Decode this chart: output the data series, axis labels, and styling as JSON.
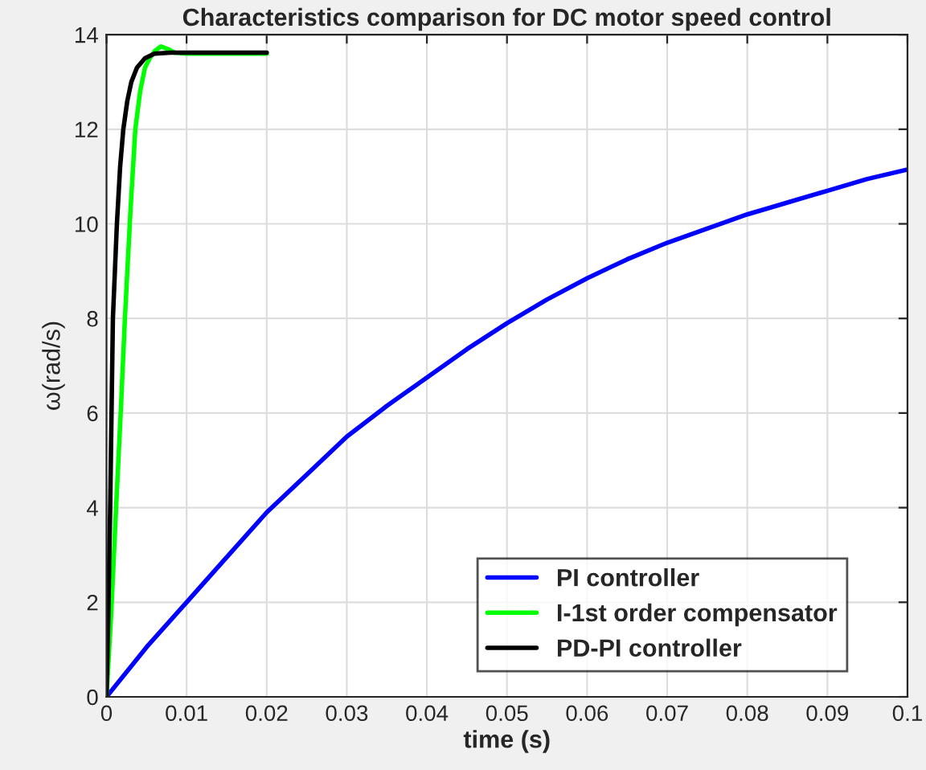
{
  "chart_data": {
    "type": "line",
    "title": "Characteristics comparison for DC motor speed control",
    "xlabel": "time (s)",
    "ylabel": "ω(rad/s)",
    "series": [
      {
        "name": "PI controller",
        "color": "#0000ff",
        "x": [
          0,
          0.005,
          0.01,
          0.015,
          0.02,
          0.025,
          0.03,
          0.035,
          0.04,
          0.045,
          0.05,
          0.055,
          0.06,
          0.065,
          0.07,
          0.075,
          0.08,
          0.085,
          0.09,
          0.095,
          0.1
        ],
        "values": [
          0,
          1.05,
          2.0,
          2.95,
          3.9,
          4.7,
          5.5,
          6.15,
          6.75,
          7.35,
          7.9,
          8.4,
          8.85,
          9.25,
          9.6,
          9.9,
          10.2,
          10.45,
          10.7,
          10.95,
          11.15
        ]
      },
      {
        "name": "I-1st order compensator",
        "color": "#00ff00",
        "x": [
          0,
          0.0006,
          0.0012,
          0.0018,
          0.0023,
          0.003,
          0.0036,
          0.0042,
          0.0048,
          0.0054,
          0.006,
          0.0068,
          0.0076,
          0.0085,
          0.01,
          0.02
        ],
        "values": [
          0,
          1.8,
          4,
          6.1,
          8,
          10.3,
          12,
          12.8,
          13.3,
          13.5,
          13.65,
          13.75,
          13.7,
          13.62,
          13.6,
          13.6
        ]
      },
      {
        "name": "PD-PI controller",
        "color": "#000000",
        "x": [
          0,
          0.0002,
          0.00046,
          0.0008,
          0.0013,
          0.0017,
          0.0021,
          0.0026,
          0.0031,
          0.0038,
          0.0048,
          0.006,
          0.008,
          0.02
        ],
        "values": [
          0,
          1.5,
          4,
          8,
          10,
          11.2,
          12,
          12.6,
          13,
          13.3,
          13.5,
          13.6,
          13.62,
          13.62
        ]
      }
    ],
    "xlim": [
      0,
      0.1
    ],
    "ylim": [
      0,
      14
    ],
    "xticks": [
      0,
      0.01,
      0.02,
      0.03,
      0.04,
      0.05,
      0.06,
      0.07,
      0.08,
      0.09,
      0.1
    ],
    "yticks": [
      0,
      2,
      4,
      6,
      8,
      10,
      12,
      14
    ],
    "grid": true,
    "legend": "bottom right",
    "marker": "none",
    "line_style": "solid"
  }
}
